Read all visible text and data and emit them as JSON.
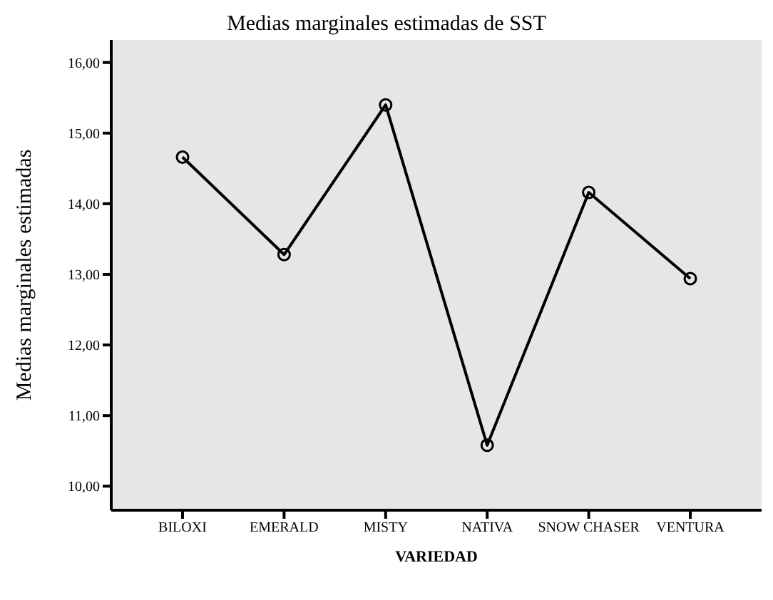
{
  "chart_data": {
    "type": "line",
    "title": "Medias marginales estimadas de SST",
    "xlabel": "VARIEDAD",
    "ylabel": "Medias marginales estimadas",
    "categories": [
      "BILOXI",
      "EMERALD",
      "MISTY",
      "NATIVA",
      "SNOW CHASER",
      "VENTURA"
    ],
    "series": [
      {
        "color": "#000000",
        "values": [
          14.66,
          13.28,
          15.4,
          10.58,
          14.16,
          12.94
        ]
      }
    ],
    "ylim": [
      9.66,
      16.32
    ],
    "yticks": [
      {
        "value": 10,
        "label": "10,00"
      },
      {
        "value": 11,
        "label": "11,00"
      },
      {
        "value": 12,
        "label": "12,00"
      },
      {
        "value": 13,
        "label": "13,00"
      },
      {
        "value": 14,
        "label": "14,00"
      },
      {
        "value": 15,
        "label": "15,00"
      },
      {
        "value": 16,
        "label": "16,00"
      }
    ],
    "marker": "circle",
    "line_style": "solid",
    "grid": false,
    "legend": false
  }
}
